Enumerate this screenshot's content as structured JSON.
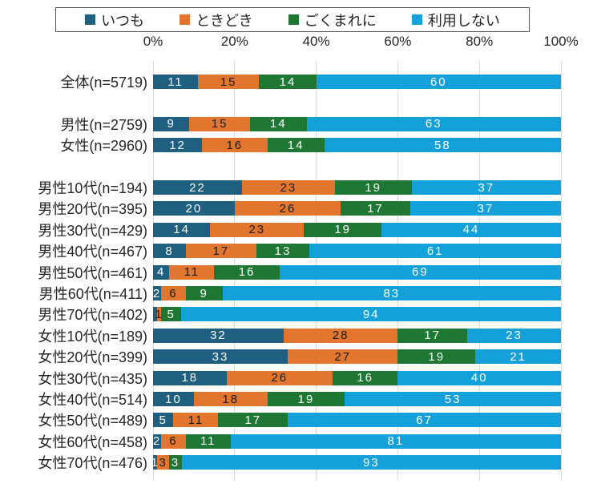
{
  "legend": {
    "border_color": "#595959",
    "items": [
      {
        "label": "いつも",
        "color": "#1F5F80"
      },
      {
        "label": "ときどき",
        "color": "#E2762E"
      },
      {
        "label": "ごくまれに",
        "color": "#1E7733"
      },
      {
        "label": "利用しない",
        "color": "#14A0D8"
      }
    ]
  },
  "chart_data": {
    "type": "bar",
    "orientation": "horizontal",
    "stacked": true,
    "units": "percent",
    "title": "",
    "xlabel": "",
    "ylabel": "",
    "x_range": [
      0,
      100
    ],
    "x_ticks": [
      "0%",
      "20%",
      "40%",
      "60%",
      "80%",
      "100%"
    ],
    "grid": true,
    "grid_color": "#D9D9D9",
    "legend_position": "top",
    "series_names": [
      "いつも",
      "ときどき",
      "ごくまれに",
      "利用しない"
    ],
    "series_colors": [
      "#1F5F80",
      "#E2762E",
      "#1E7733",
      "#14A0D8"
    ],
    "value_label_colors": [
      "#FFFFFF",
      "#1A1A1A",
      "#FFFFFF",
      "#FFFFFF"
    ],
    "rows": [
      {
        "category": "全体(n=5719)",
        "values": [
          11,
          15,
          14,
          60
        ],
        "labels": [
          "11",
          "15",
          "14",
          "60"
        ]
      },
      {
        "spacer": true
      },
      {
        "category": "男性(n=2759)",
        "values": [
          9,
          15,
          14,
          63
        ],
        "labels": [
          "9",
          "15",
          "14",
          "63"
        ]
      },
      {
        "category": "女性(n=2960)",
        "values": [
          12,
          16,
          14,
          58
        ],
        "labels": [
          "12",
          "16",
          "14",
          "58"
        ]
      },
      {
        "spacer": true
      },
      {
        "category": "男性10代(n=194)",
        "values": [
          22,
          23,
          19,
          37
        ],
        "labels": [
          "22",
          "23",
          "19",
          "37"
        ]
      },
      {
        "category": "男性20代(n=395)",
        "values": [
          20,
          26,
          17,
          37
        ],
        "labels": [
          "20",
          "26",
          "17",
          "37"
        ]
      },
      {
        "category": "男性30代(n=429)",
        "values": [
          14,
          23,
          19,
          44
        ],
        "labels": [
          "14",
          "23",
          "19",
          "44"
        ]
      },
      {
        "category": "男性40代(n=467)",
        "values": [
          8,
          17,
          13,
          61
        ],
        "labels": [
          "8",
          "17",
          "13",
          "61"
        ]
      },
      {
        "category": "男性50代(n=461)",
        "values": [
          4,
          11,
          16,
          69
        ],
        "labels": [
          "4",
          "11",
          "16",
          "69"
        ]
      },
      {
        "category": "男性60代(n=411)",
        "values": [
          2,
          6,
          9,
          83
        ],
        "labels": [
          "2",
          "6",
          "9",
          "83"
        ]
      },
      {
        "category": "男性70代(n=402)",
        "values": [
          1,
          1,
          5,
          94
        ],
        "labels": [
          "",
          "1",
          "5",
          "94"
        ]
      },
      {
        "category": "女性10代(n=189)",
        "values": [
          32,
          28,
          17,
          23
        ],
        "labels": [
          "32",
          "28",
          "17",
          "23"
        ]
      },
      {
        "category": "女性20代(n=399)",
        "values": [
          33,
          27,
          19,
          21
        ],
        "labels": [
          "33",
          "27",
          "19",
          "21"
        ]
      },
      {
        "category": "女性30代(n=435)",
        "values": [
          18,
          26,
          16,
          40
        ],
        "labels": [
          "18",
          "26",
          "16",
          "40"
        ]
      },
      {
        "category": "女性40代(n=514)",
        "values": [
          10,
          18,
          19,
          53
        ],
        "labels": [
          "10",
          "18",
          "19",
          "53"
        ]
      },
      {
        "category": "女性50代(n=489)",
        "values": [
          5,
          11,
          17,
          67
        ],
        "labels": [
          "5",
          "11",
          "17",
          "67"
        ]
      },
      {
        "category": "女性60代(n=458)",
        "values": [
          2,
          6,
          11,
          81
        ],
        "labels": [
          "2",
          "6",
          "11",
          "81"
        ]
      },
      {
        "category": "女性70代(n=476)",
        "values": [
          1,
          3,
          3,
          93
        ],
        "labels": [
          "1",
          "3",
          "3",
          "93"
        ]
      }
    ]
  }
}
